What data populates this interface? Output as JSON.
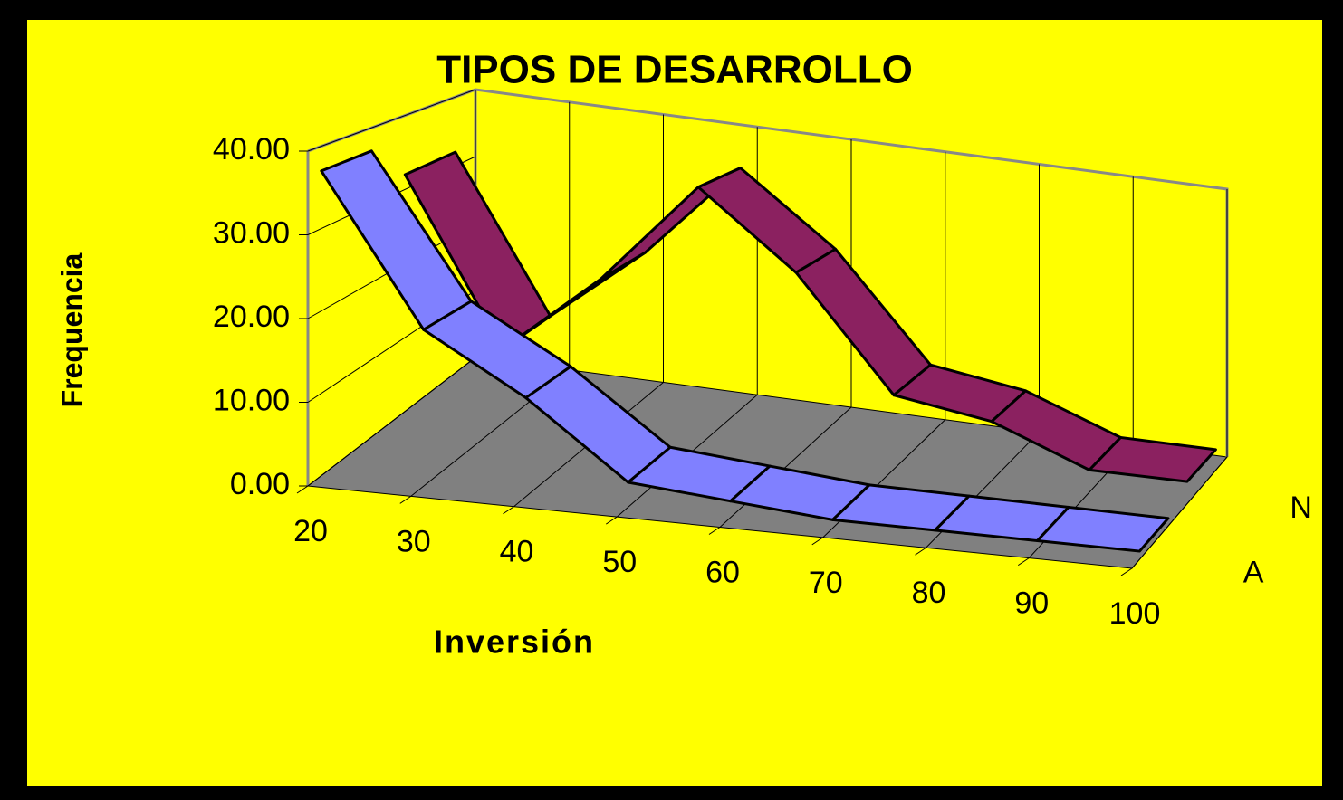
{
  "chart_data": {
    "type": "ribbon3d",
    "title": "TIPOS DE DESARROLLO",
    "x_label": "Inversión",
    "y_label": "Frequencia",
    "categories": [
      "20",
      "30",
      "40",
      "50",
      "60",
      "70",
      "80",
      "90",
      "100"
    ],
    "series": [
      {
        "name": "N",
        "color": "#8b2160",
        "values": [
          32,
          10,
          21,
          35,
          25,
          10,
          8,
          3,
          3
        ]
      },
      {
        "name": "A",
        "color": "#8080ff",
        "values": [
          37,
          19,
          12,
          3,
          2,
          1,
          1,
          1,
          1
        ]
      }
    ],
    "ylim": [
      0,
      40
    ],
    "yticks": [
      {
        "value": 0,
        "label": "0.00"
      },
      {
        "value": 10,
        "label": "10.00"
      },
      {
        "value": 20,
        "label": "20.00"
      },
      {
        "value": 30,
        "label": "30.00"
      },
      {
        "value": 40,
        "label": "40.00"
      }
    ],
    "grid": true
  }
}
